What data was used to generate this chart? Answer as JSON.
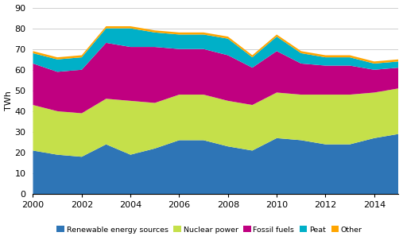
{
  "years": [
    2000,
    2001,
    2002,
    2003,
    2004,
    2005,
    2006,
    2007,
    2008,
    2009,
    2010,
    2011,
    2012,
    2013,
    2014,
    2015
  ],
  "renewable": [
    21,
    19,
    18,
    24,
    19,
    22,
    26,
    26,
    23,
    21,
    27,
    26,
    24,
    24,
    27,
    29
  ],
  "nuclear": [
    22,
    21,
    21,
    22,
    26,
    22,
    22,
    22,
    22,
    22,
    22,
    22,
    24,
    24,
    22,
    22
  ],
  "fossil": [
    20,
    19,
    21,
    27,
    26,
    27,
    22,
    22,
    22,
    18,
    20,
    15,
    14,
    14,
    11,
    10
  ],
  "peat": [
    5,
    6,
    6,
    7,
    9,
    7,
    7,
    7,
    8,
    5,
    7,
    5,
    4,
    4,
    3,
    3
  ],
  "other": [
    1,
    1,
    1,
    1,
    1,
    1,
    1,
    1,
    1,
    1,
    1,
    1,
    1,
    1,
    1,
    1
  ],
  "colors": {
    "renewable": "#2E75B6",
    "nuclear": "#C5E04A",
    "fossil": "#C00080",
    "peat": "#00B0C8",
    "other": "#FFA500"
  },
  "ylabel": "TWh",
  "ylim": [
    0,
    90
  ],
  "yticks": [
    0,
    10,
    20,
    30,
    40,
    50,
    60,
    70,
    80,
    90
  ],
  "legend": [
    "Renewable energy sources",
    "Nuclear power",
    "Fossil fuels",
    "Peat",
    "Other"
  ],
  "grid_color": "#c8c8c8",
  "background_color": "#ffffff"
}
